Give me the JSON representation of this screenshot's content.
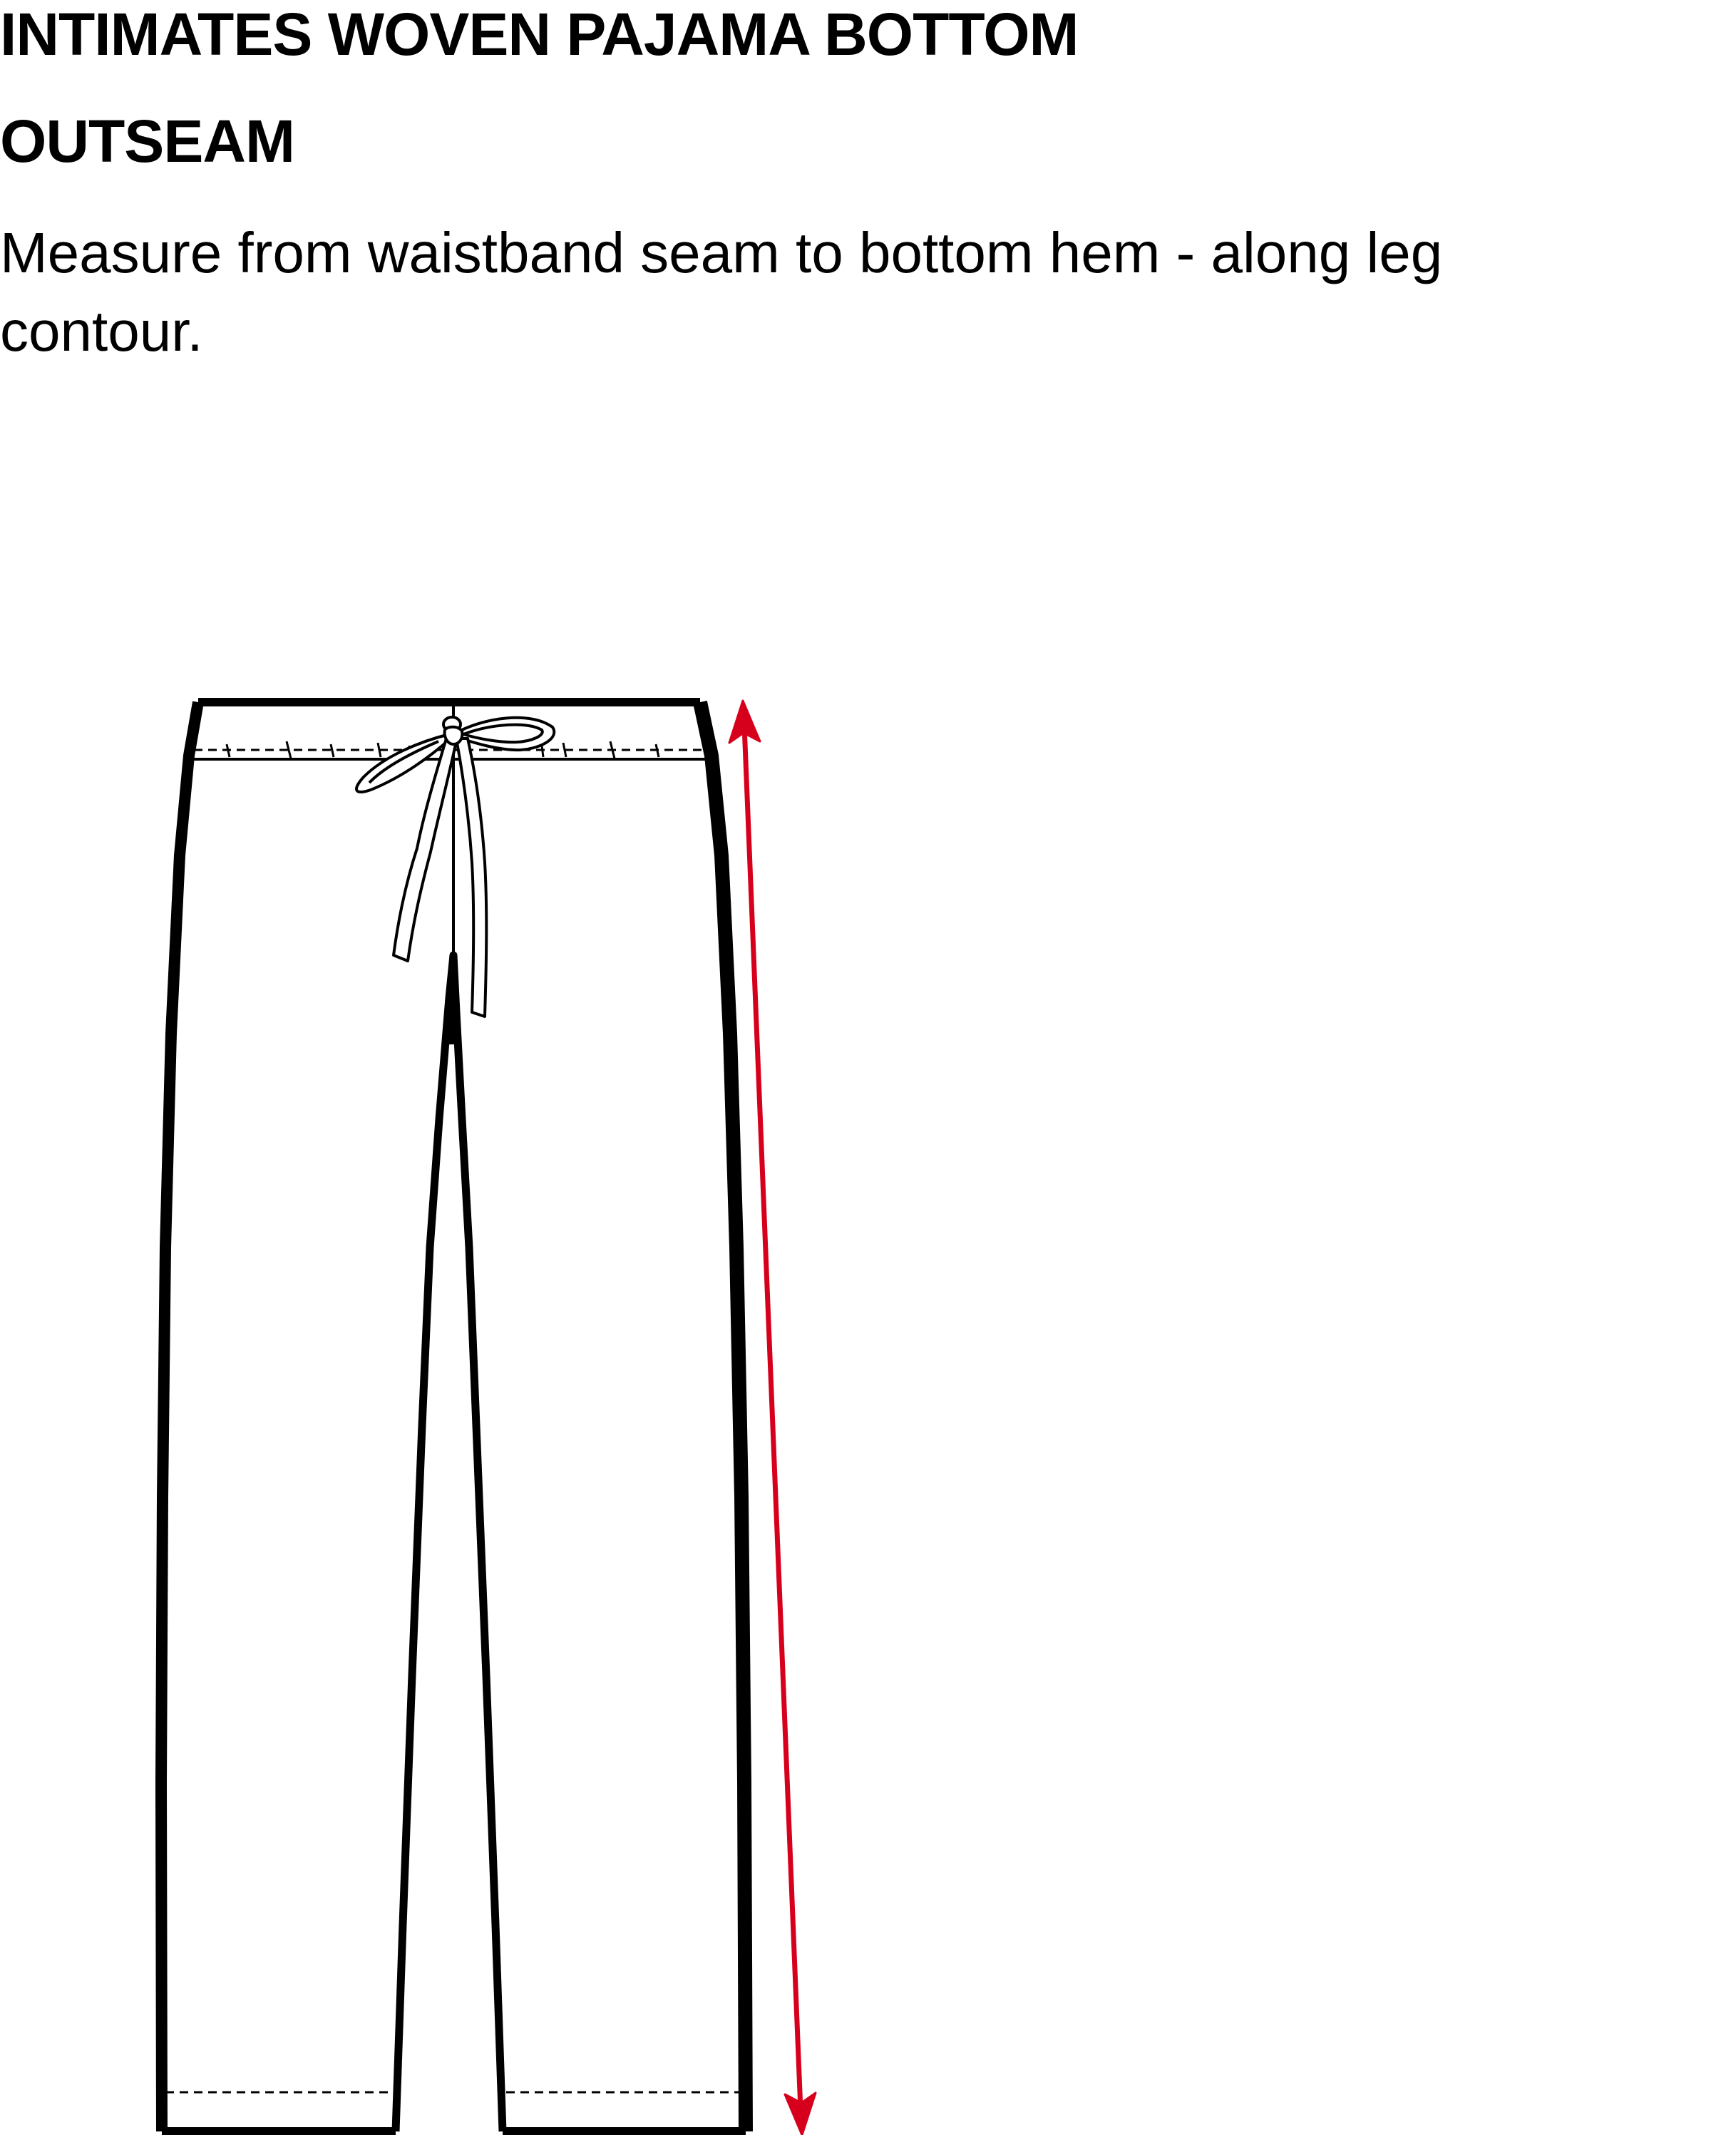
{
  "header": {
    "title": "INTIMATES WOVEN PAJAMA BOTTOM",
    "measurement": "OUTSEAM",
    "instructions": "Measure from waistband seam to bottom hem - along leg contour."
  },
  "diagram": {
    "garment": "pajama-bottom",
    "icons": [
      "pants-outline",
      "drawstring-tie",
      "outseam-measure-arrow"
    ],
    "colors": {
      "outline": "#000000",
      "measure_arrow": "#d6001c",
      "background": "#ffffff"
    }
  }
}
